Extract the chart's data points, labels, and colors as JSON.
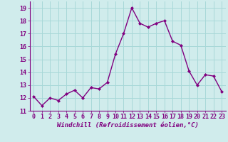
{
  "x": [
    0,
    1,
    2,
    3,
    4,
    5,
    6,
    7,
    8,
    9,
    10,
    11,
    12,
    13,
    14,
    15,
    16,
    17,
    18,
    19,
    20,
    21,
    22,
    23
  ],
  "y": [
    12.1,
    11.4,
    12.0,
    11.8,
    12.3,
    12.6,
    12.0,
    12.8,
    12.7,
    13.2,
    15.4,
    17.0,
    19.0,
    17.8,
    17.5,
    17.8,
    18.0,
    16.4,
    16.1,
    14.1,
    13.0,
    13.8,
    13.7,
    12.5
  ],
  "line_color": "#800080",
  "marker": "D",
  "marker_size": 2,
  "line_width": 1.0,
  "xlabel": "Windchill (Refroidissement éolien,°C)",
  "xlabel_fontsize": 6.5,
  "ylim": [
    11,
    19.5
  ],
  "xlim": [
    -0.5,
    23.5
  ],
  "yticks": [
    11,
    12,
    13,
    14,
    15,
    16,
    17,
    18,
    19
  ],
  "xticks": [
    0,
    1,
    2,
    3,
    4,
    5,
    6,
    7,
    8,
    9,
    10,
    11,
    12,
    13,
    14,
    15,
    16,
    17,
    18,
    19,
    20,
    21,
    22,
    23
  ],
  "grid_color": "#a8d8d8",
  "background_color": "#d0ecec",
  "tick_fontsize": 6,
  "spine_color": "#800080"
}
